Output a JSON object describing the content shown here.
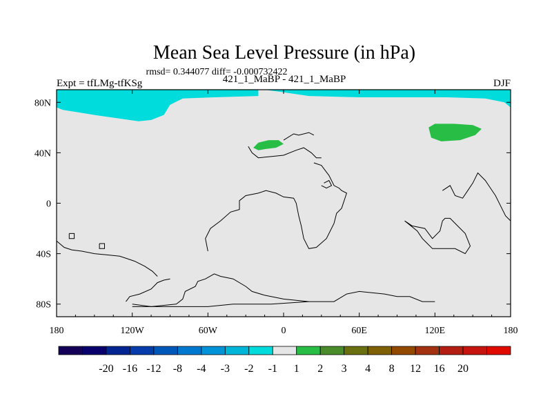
{
  "chart_data": {
    "type": "heatmap",
    "title": "Mean Sea Level Pressure (in hPa)",
    "stats_line": "rmsd= 0.344077 diff= -0.000732422",
    "left_label": "Expt = tfLMg-tfKSg",
    "center_label": "421_1_MaBP - 421_1_MaBP",
    "right_label": "DJF",
    "x_range": [
      -180,
      180
    ],
    "y_range": [
      -90,
      90
    ],
    "x_ticks": [
      {
        "value": -180,
        "label": "180"
      },
      {
        "value": -120,
        "label": "120W"
      },
      {
        "value": -60,
        "label": "60W"
      },
      {
        "value": 0,
        "label": "0"
      },
      {
        "value": 60,
        "label": "60E"
      },
      {
        "value": 120,
        "label": "120E"
      },
      {
        "value": 180,
        "label": "180"
      }
    ],
    "y_ticks": [
      {
        "value": 80,
        "label": "80N"
      },
      {
        "value": 40,
        "label": "40N"
      },
      {
        "value": 0,
        "label": "0"
      },
      {
        "value": -40,
        "label": "40S"
      },
      {
        "value": -80,
        "label": "80S"
      }
    ],
    "background_class": {
      "range": "-1 to 1",
      "color": "#e6e6e6"
    },
    "regions": [
      {
        "name": "Arctic (west)",
        "value_range": "-2 to -1",
        "color": "#00dcdc",
        "outline": [
          [
            -180,
            90
          ],
          [
            -20,
            90
          ],
          [
            -20,
            85
          ],
          [
            -55,
            84
          ],
          [
            -80,
            83
          ],
          [
            -90,
            78
          ],
          [
            -95,
            70
          ],
          [
            -105,
            66
          ],
          [
            -115,
            65
          ],
          [
            -150,
            70
          ],
          [
            -175,
            74
          ],
          [
            -180,
            76
          ]
        ]
      },
      {
        "name": "Arctic (east)",
        "value_range": "-2 to -1",
        "color": "#00dcdc",
        "outline": [
          [
            -15,
            90
          ],
          [
            180,
            90
          ],
          [
            180,
            76
          ],
          [
            175,
            80
          ],
          [
            160,
            83
          ],
          [
            130,
            84
          ],
          [
            90,
            84
          ],
          [
            60,
            84
          ],
          [
            20,
            85
          ],
          [
            0,
            88
          ]
        ]
      },
      {
        "name": "Europe anomaly",
        "value_range": "1 to 2",
        "color": "#28be46",
        "outline": [
          [
            -24,
            44
          ],
          [
            -20,
            48
          ],
          [
            -12,
            50
          ],
          [
            -4,
            50
          ],
          [
            0,
            47
          ],
          [
            -6,
            44
          ],
          [
            -14,
            43
          ],
          [
            -20,
            42
          ]
        ]
      },
      {
        "name": "North Pacific anomaly",
        "value_range": "1 to 2",
        "color": "#28be46",
        "outline": [
          [
            115,
            60
          ],
          [
            120,
            63
          ],
          [
            135,
            63
          ],
          [
            150,
            62
          ],
          [
            157,
            59
          ],
          [
            152,
            54
          ],
          [
            140,
            50
          ],
          [
            125,
            49
          ],
          [
            117,
            52
          ]
        ]
      }
    ],
    "colorbar": {
      "colors": [
        "#150057",
        "#09006b",
        "#032591",
        "#073cad",
        "#0058b8",
        "#0078d0",
        "#0093d8",
        "#00b6d8",
        "#00dcdc",
        "#e6e6e6",
        "#28be46",
        "#4a8c2a",
        "#6a7010",
        "#806004",
        "#924a00",
        "#a23210",
        "#b41e12",
        "#c8140e",
        "#e00a00"
      ],
      "labels": [
        "-20",
        "-16",
        "-12",
        "-8",
        "-4",
        "-3",
        "-2",
        "-1",
        "1",
        "2",
        "3",
        "4",
        "8",
        "12",
        "16",
        "20"
      ]
    }
  }
}
